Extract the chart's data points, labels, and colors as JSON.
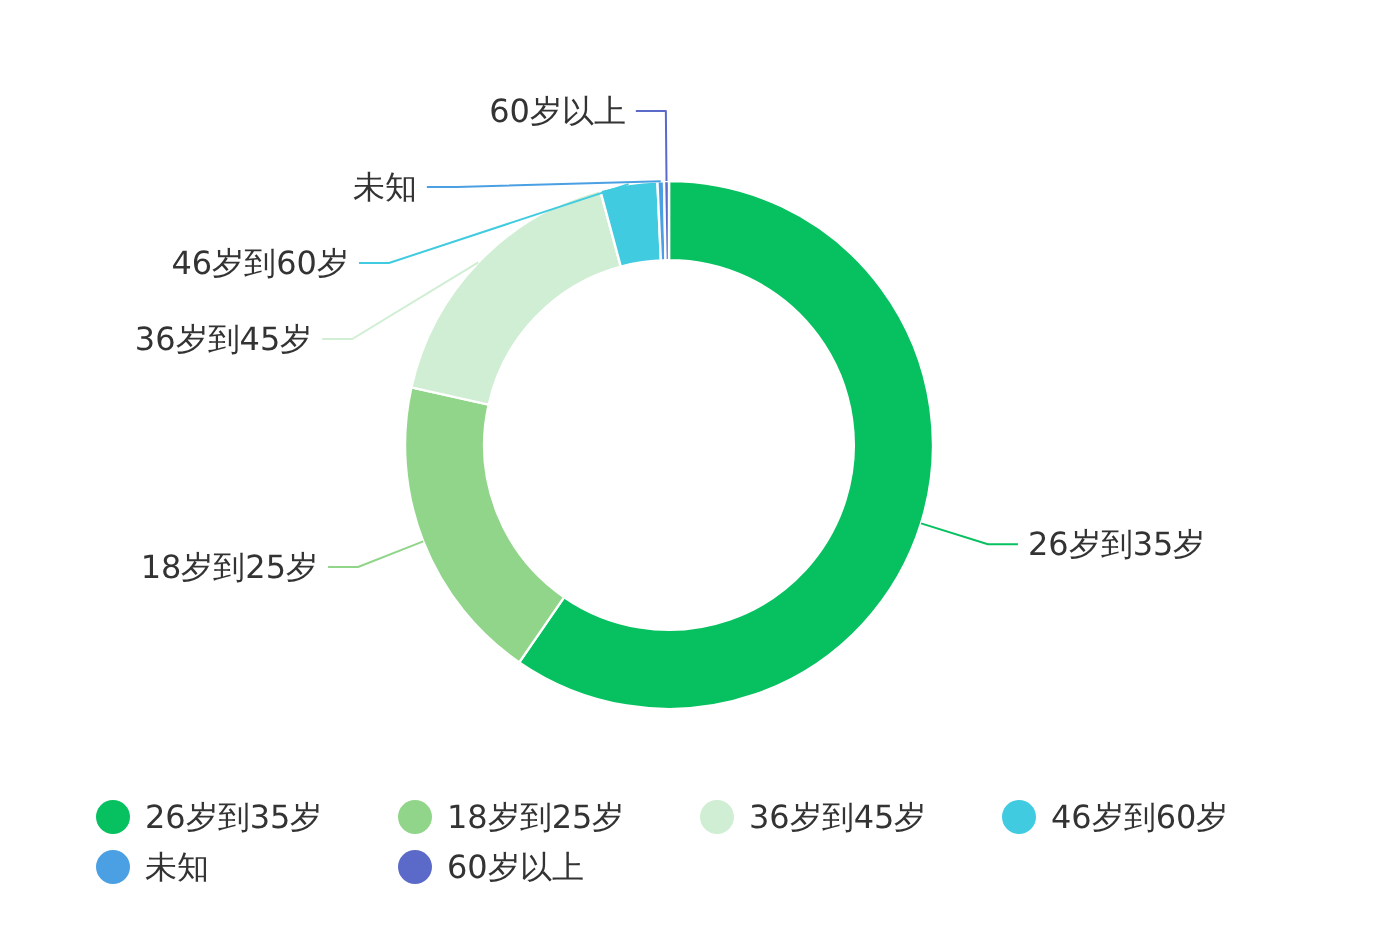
{
  "chart_data": {
    "type": "donut",
    "categories": [
      "26岁到35岁",
      "18岁到25岁",
      "36岁到45岁",
      "46岁到60岁",
      "未知",
      "60岁以上"
    ],
    "values": [
      59.6,
      18.9,
      17.3,
      3.5,
      0.4,
      0.3
    ],
    "colors": [
      "#07c160",
      "#91d58a",
      "#d0eed3",
      "#40cbe0",
      "#4aa0e2",
      "#5b6ac8"
    ],
    "legend": "bottom"
  }
}
